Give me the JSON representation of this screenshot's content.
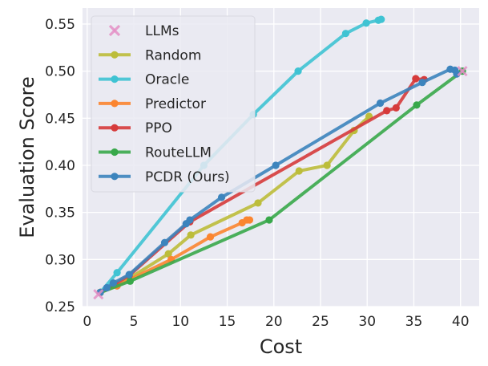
{
  "chart_data": {
    "type": "line",
    "title": "",
    "xlabel": "Cost",
    "ylabel": "Evaluation Score",
    "xlim": [
      -0.5,
      42
    ],
    "ylim": [
      0.25,
      0.567
    ],
    "xticks": [
      0,
      5,
      10,
      15,
      20,
      25,
      30,
      35,
      40
    ],
    "yticks": [
      0.25,
      0.3,
      0.35,
      0.4,
      0.45,
      0.5,
      0.55
    ],
    "ytick_labels": [
      "0.25",
      "0.30",
      "0.35",
      "0.40",
      "0.45",
      "0.50",
      "0.55"
    ],
    "grid": true,
    "legend_position": "top-left",
    "llm_points": {
      "name": "LLMs",
      "color": "#e48fc6",
      "points": [
        [
          1.2,
          0.263
        ],
        [
          40.2,
          0.5
        ]
      ]
    },
    "series": [
      {
        "name": "Random",
        "color": "#bcbd3a",
        "points": [
          [
            1.4,
            0.265
          ],
          [
            3.2,
            0.272
          ],
          [
            8.7,
            0.306
          ],
          [
            11.1,
            0.326
          ],
          [
            18.3,
            0.36
          ],
          [
            22.7,
            0.394
          ],
          [
            25.7,
            0.4
          ],
          [
            28.6,
            0.437
          ],
          [
            30.2,
            0.452
          ]
        ]
      },
      {
        "name": "Oracle",
        "color": "#3fc3d3",
        "points": [
          [
            1.4,
            0.265
          ],
          [
            3.2,
            0.286
          ],
          [
            12.5,
            0.4
          ],
          [
            17.8,
            0.454
          ],
          [
            22.6,
            0.5
          ],
          [
            27.7,
            0.54
          ],
          [
            29.9,
            0.551
          ],
          [
            31.2,
            0.554
          ],
          [
            31.5,
            0.555
          ]
        ]
      },
      {
        "name": "Predictor",
        "color": "#fb8530",
        "points": [
          [
            1.4,
            0.265
          ],
          [
            3.2,
            0.272
          ],
          [
            9.0,
            0.3
          ],
          [
            13.2,
            0.324
          ],
          [
            16.6,
            0.339
          ],
          [
            17.1,
            0.342
          ],
          [
            17.4,
            0.342
          ]
        ]
      },
      {
        "name": "PPO",
        "color": "#d63b3b",
        "points": [
          [
            1.4,
            0.265
          ],
          [
            4.5,
            0.283
          ],
          [
            11.0,
            0.34
          ],
          [
            32.1,
            0.458
          ],
          [
            33.1,
            0.461
          ],
          [
            35.2,
            0.492
          ],
          [
            36.1,
            0.491
          ]
        ]
      },
      {
        "name": "RouteLLM",
        "color": "#38a84a",
        "points": [
          [
            1.4,
            0.265
          ],
          [
            4.6,
            0.277
          ],
          [
            19.5,
            0.342
          ],
          [
            35.3,
            0.464
          ],
          [
            40.2,
            0.5
          ]
        ]
      },
      {
        "name": "PCDR (Ours)",
        "color": "#3c84bd",
        "points": [
          [
            1.4,
            0.265
          ],
          [
            2.1,
            0.27
          ],
          [
            2.8,
            0.275
          ],
          [
            4.5,
            0.284
          ],
          [
            8.3,
            0.318
          ],
          [
            10.6,
            0.338
          ],
          [
            11.0,
            0.342
          ],
          [
            14.4,
            0.366
          ],
          [
            20.2,
            0.4
          ],
          [
            31.4,
            0.466
          ],
          [
            35.9,
            0.488
          ],
          [
            38.9,
            0.502
          ],
          [
            39.4,
            0.501
          ],
          [
            39.6,
            0.497
          ]
        ]
      }
    ]
  }
}
